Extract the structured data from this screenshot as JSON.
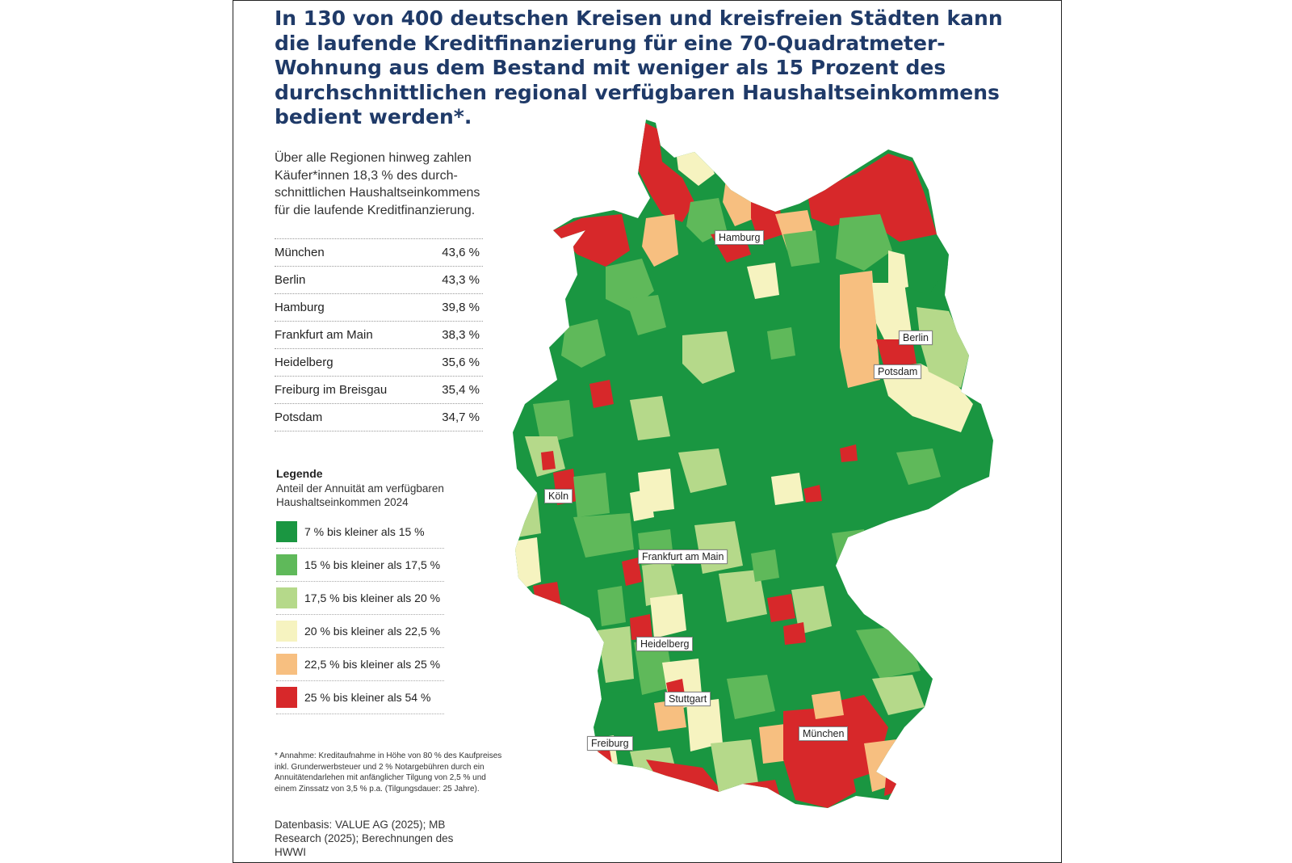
{
  "headline": [
    "In 130 von 400 deutschen Kreisen und kreisfreien Städten kann",
    "die laufende Kreditfinanzierung für eine 70-Quadratmeter-",
    "Wohnung aus dem Bestand mit weniger als 15 Prozent des",
    "durchschnittlichen regional verfügbaren Haushaltseinkommens",
    "bedient werden*."
  ],
  "intro": [
    "Über alle Regionen hinweg zahlen",
    "Käufer*innen 18,3 % des durch-",
    "schnittlichen Haushaltseinkommens",
    "für die laufende Kreditfinanzierung."
  ],
  "ranking": [
    {
      "city": "München",
      "value": "43,6 %"
    },
    {
      "city": "Berlin",
      "value": "43,3 %"
    },
    {
      "city": "Hamburg",
      "value": "39,8 %"
    },
    {
      "city": "Frankfurt am Main",
      "value": "38,3 %"
    },
    {
      "city": "Heidelberg",
      "value": "35,6 %"
    },
    {
      "city": "Freiburg im Breisgau",
      "value": "35,4 %"
    },
    {
      "city": "Potsdam",
      "value": "34,7 %"
    }
  ],
  "legend": {
    "title": "Legende",
    "subtitle": [
      "Anteil der Annuität am verfügbaren",
      "Haushaltseinkommen 2024"
    ],
    "items": [
      {
        "label": "7 % bis kleiner als 15 %",
        "color": "#1a9641"
      },
      {
        "label": "15 % bis kleiner als 17,5 %",
        "color": "#5fb95a"
      },
      {
        "label": "17,5 % bis kleiner als 20 %",
        "color": "#b5d98a"
      },
      {
        "label": "20 % bis kleiner als 22,5 %",
        "color": "#f6f3c0"
      },
      {
        "label": "22,5 % bis kleiner als 25 %",
        "color": "#f7bf80"
      },
      {
        "label": "25 % bis kleiner als 54 %",
        "color": "#d7282a"
      }
    ]
  },
  "footnote": [
    "* Annahme: Kreditaufnahme in Höhe von 80 % des Kaufpreises",
    "inkl. Grunderwerbsteuer und 2 % Notargebühren durch ein",
    "Annuitätendarlehen mit anfänglicher Tilgung von 2,5 % und",
    "einem Zinssatz von 3,5 % p.a. (Tilgungsdauer: 25 Jahre)."
  ],
  "source": [
    "Datenbasis: VALUE AG (2025); MB",
    "Research (2025); Berechnungen des",
    "HWWI"
  ],
  "map_labels": {
    "hamburg": "Hamburg",
    "berlin": "Berlin",
    "potsdam": "Potsdam",
    "koeln": "Köln",
    "frankfurt": "Frankfurt am Main",
    "heidelberg": "Heidelberg",
    "stuttgart": "Stuttgart",
    "freiburg": "Freiburg",
    "muenchen": "München"
  }
}
